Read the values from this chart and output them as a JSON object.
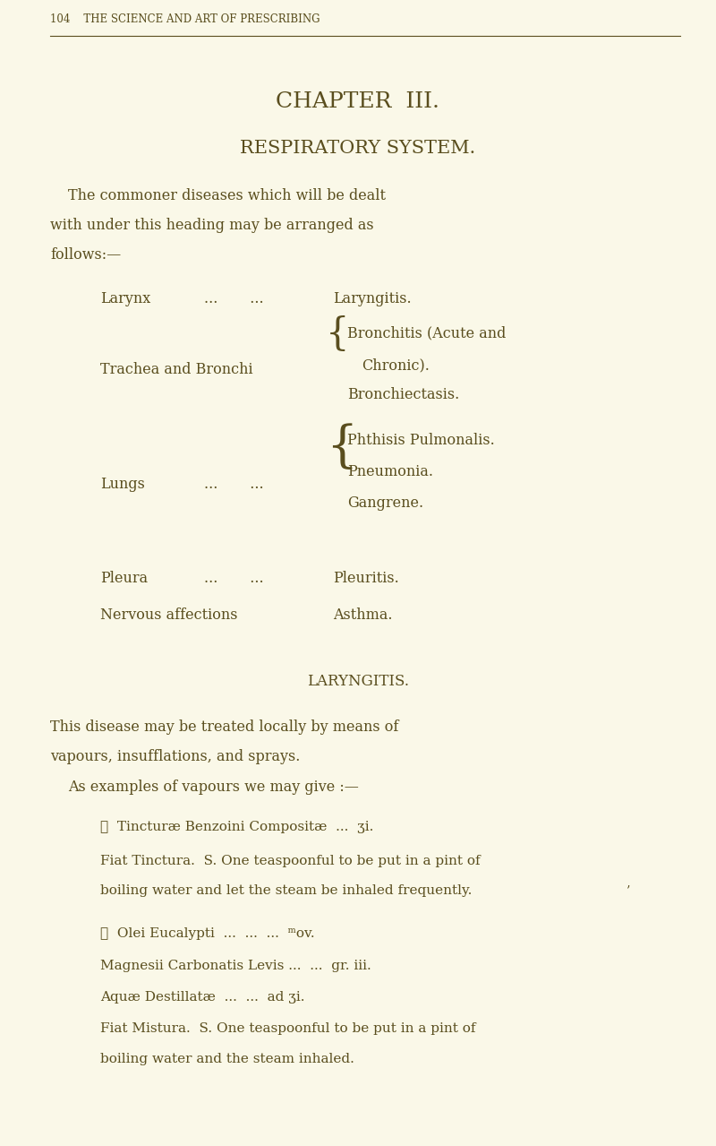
{
  "bg_color": "#faf8e8",
  "text_color": "#5a4e1e",
  "page_width": 8.0,
  "page_height": 12.79,
  "header_text": "104    THE SCIENCE AND ART OF PRESCRIBING",
  "chapter_title": "CHAPTER  III.",
  "chapter_subtitle": "RESPIRATORY SYSTEM.",
  "intro_lines": [
    "The commoner diseases which will be dealt",
    "with under this heading may be arranged as",
    "follows:—"
  ],
  "section_heading": "LARYNGITIS.",
  "laryngitis_intro": "This disease may be treated locally by means of",
  "laryngitis_intro2": "vapours, insufflations, and sprays.",
  "examples_line": "As examples of vapours we may give :—",
  "rx1_lines": [
    "℞  Tincturæ Benzoini Compositæ  ...  ʒi.",
    "Fiat Tinctura.  S. One teaspoonful to be put in a pint of",
    "boiling water and let the steam be inhaled frequently."
  ],
  "rx2_lines": [
    "℞  Olei Eucalypti  ...  ...  ...  ᵐᴏv.",
    "Magnesii Carbonatis Levis ...  ...  gr. iii.",
    "Aquæ Destillatæ  ...  ...  ad ʒi.",
    "Fiat Mistura.  S. One teaspoonful to be put in a pint of",
    "boiling water and the steam inhaled."
  ]
}
